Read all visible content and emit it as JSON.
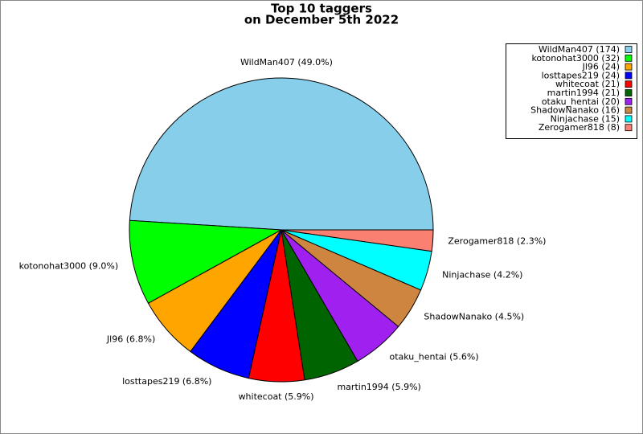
{
  "chart_data": {
    "type": "pie",
    "title": "Top 10 taggers",
    "subtitle": "on December 5th 2022",
    "categories": [
      "WildMan407",
      "kotonohat3000",
      "Jl96",
      "losttapes219",
      "whitecoat",
      "martin1994",
      "otaku_hentai",
      "ShadowNanako",
      "Ninjachase",
      "Zerogamer818"
    ],
    "values": [
      174,
      32,
      24,
      24,
      21,
      21,
      20,
      16,
      15,
      8
    ],
    "slice_labels": [
      "WildMan407 (49.0%)",
      "kotonohat3000 (9.0%)",
      "Jl96 (6.8%)",
      "losttapes219 (6.8%)",
      "whitecoat (5.9%)",
      "martin1994 (5.9%)",
      "otaku_hentai (5.6%)",
      "ShadowNanako (4.5%)",
      "Ninjachase (4.2%)",
      "Zerogamer818 (2.3%)"
    ],
    "legend_labels": [
      "WildMan407 (174)",
      "kotonohat3000 (32)",
      "Jl96 (24)",
      "losttapes219 (24)",
      "whitecoat (21)",
      "martin1994 (21)",
      "otaku_hentai (20)",
      "ShadowNanako (16)",
      "Ninjachase (15)",
      "Zerogamer818 (8)"
    ],
    "colors": [
      "#87ceeb",
      "#00ff00",
      "#ffa500",
      "#0000ff",
      "#ff0000",
      "#006400",
      "#a020f0",
      "#cd853f",
      "#00ffff",
      "#fa8072"
    ],
    "legend": "upper right"
  }
}
